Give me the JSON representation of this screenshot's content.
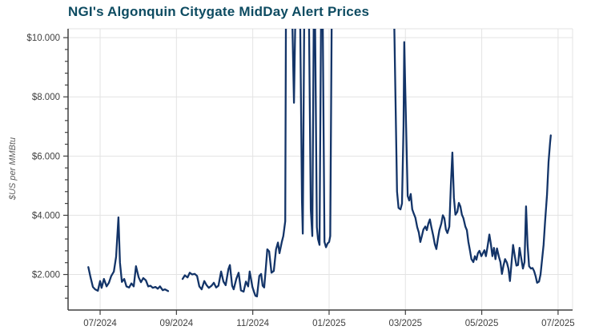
{
  "page": {
    "background": "#ffffff"
  },
  "chart": {
    "title": "NGI's Algonquin Citygate MidDay Alert Prices",
    "title_color": "#0d4b61",
    "ylabel": "$US per MMBtu",
    "line_color": "#133468",
    "grid_color": "#e3e3e3",
    "axis_color": "#3f3f3f",
    "tick_label_color": "#3f3f3f"
  },
  "chart_data": {
    "type": "line",
    "title": "NGI's Algonquin Citygate MidDay Alert Prices",
    "ylabel": "$US per MMBtu",
    "xlabel": "",
    "series_name": "Algonquin Citygate MidDay alert price",
    "x_unit": "months since 2024-07 (0 = 07/2024)",
    "xlim": [
      -0.84,
      12.38
    ],
    "ylim": [
      0.8,
      10.3
    ],
    "clipped_above": 10.3,
    "grid": true,
    "x_ticks": {
      "values": [
        0,
        2,
        4,
        6,
        8,
        10,
        12
      ],
      "labels": [
        "07/2024",
        "09/2024",
        "11/2024",
        "01/2025",
        "03/2025",
        "05/2025",
        "07/2025"
      ]
    },
    "y_ticks": {
      "values": [
        2,
        4,
        6,
        8,
        10
      ],
      "labels": [
        "$2.000",
        "$4.000",
        "$6.000",
        "$8.000",
        "$10.000"
      ],
      "minor_step": 0.4
    },
    "gap_note": "null entries are breaks in the reported price series; values of 11 are off-scale spikes clipped at the top of the plot",
    "points": [
      [
        -0.31,
        2.25
      ],
      [
        -0.25,
        1.9
      ],
      [
        -0.19,
        1.58
      ],
      [
        -0.13,
        1.5
      ],
      [
        -0.06,
        1.45
      ],
      [
        0,
        1.78
      ],
      [
        0.04,
        1.55
      ],
      [
        0.1,
        1.85
      ],
      [
        0.17,
        1.6
      ],
      [
        0.23,
        1.72
      ],
      [
        0.29,
        1.95
      ],
      [
        0.36,
        2.1
      ],
      [
        0.42,
        2.6
      ],
      [
        0.48,
        3.93
      ],
      [
        0.52,
        2.4
      ],
      [
        0.57,
        1.75
      ],
      [
        0.63,
        1.85
      ],
      [
        0.69,
        1.6
      ],
      [
        0.76,
        1.56
      ],
      [
        0.82,
        1.7
      ],
      [
        0.88,
        1.6
      ],
      [
        0.94,
        2.28
      ],
      [
        1.01,
        1.9
      ],
      [
        1.07,
        1.74
      ],
      [
        1.13,
        1.88
      ],
      [
        1.2,
        1.8
      ],
      [
        1.26,
        1.6
      ],
      [
        1.32,
        1.62
      ],
      [
        1.38,
        1.55
      ],
      [
        1.45,
        1.58
      ],
      [
        1.51,
        1.52
      ],
      [
        1.57,
        1.6
      ],
      [
        1.64,
        1.47
      ],
      [
        1.7,
        1.5
      ],
      [
        1.78,
        1.44
      ],
      null,
      [
        2.16,
        1.85
      ],
      [
        2.22,
        1.97
      ],
      [
        2.29,
        1.9
      ],
      [
        2.35,
        2.06
      ],
      [
        2.41,
        2.0
      ],
      [
        2.48,
        2.02
      ],
      [
        2.54,
        1.95
      ],
      [
        2.6,
        1.6
      ],
      [
        2.66,
        1.5
      ],
      [
        2.73,
        1.78
      ],
      [
        2.79,
        1.64
      ],
      [
        2.85,
        1.55
      ],
      [
        2.92,
        1.62
      ],
      [
        2.98,
        1.72
      ],
      [
        3.04,
        1.56
      ],
      [
        3.1,
        1.62
      ],
      [
        3.17,
        2.1
      ],
      [
        3.23,
        1.76
      ],
      [
        3.29,
        1.64
      ],
      [
        3.36,
        2.18
      ],
      [
        3.4,
        2.32
      ],
      [
        3.46,
        1.62
      ],
      [
        3.5,
        1.5
      ],
      [
        3.57,
        1.86
      ],
      [
        3.63,
        2.06
      ],
      [
        3.69,
        1.46
      ],
      [
        3.76,
        1.42
      ],
      [
        3.82,
        1.76
      ],
      [
        3.88,
        1.6
      ],
      [
        3.92,
        2.1
      ],
      [
        3.99,
        1.58
      ],
      [
        4.03,
        1.42
      ],
      [
        4.07,
        1.28
      ],
      [
        4.11,
        1.26
      ],
      [
        4.17,
        1.95
      ],
      [
        4.22,
        2.02
      ],
      [
        4.26,
        1.62
      ],
      [
        4.3,
        1.56
      ],
      [
        4.34,
        2.2
      ],
      [
        4.38,
        2.85
      ],
      [
        4.43,
        2.78
      ],
      [
        4.49,
        2.06
      ],
      [
        4.55,
        2.12
      ],
      [
        4.61,
        2.85
      ],
      [
        4.66,
        3.08
      ],
      [
        4.7,
        2.72
      ],
      [
        4.76,
        3.1
      ],
      [
        4.8,
        3.3
      ],
      [
        4.85,
        3.8
      ],
      [
        4.87,
        11
      ],
      [
        5.03,
        11
      ],
      [
        5.08,
        7.8
      ],
      [
        5.12,
        11
      ],
      [
        5.24,
        11
      ],
      [
        5.29,
        4.5
      ],
      [
        5.31,
        3.38
      ],
      [
        5.35,
        11
      ],
      [
        5.47,
        11
      ],
      [
        5.52,
        4.2
      ],
      [
        5.56,
        3.3
      ],
      [
        5.6,
        11
      ],
      [
        5.63,
        11
      ],
      [
        5.68,
        3.6
      ],
      [
        5.71,
        3.2
      ],
      [
        5.75,
        3.0
      ],
      [
        5.79,
        11
      ],
      [
        5.83,
        11
      ],
      [
        5.88,
        3.1
      ],
      [
        5.92,
        2.92
      ],
      [
        5.96,
        3.05
      ],
      [
        6.0,
        3.1
      ],
      [
        6.03,
        3.3
      ],
      [
        6.07,
        11
      ],
      [
        6.19,
        11
      ],
      [
        7.7,
        11
      ],
      [
        7.78,
        4.8
      ],
      [
        7.82,
        4.25
      ],
      [
        7.87,
        4.2
      ],
      [
        7.91,
        4.4
      ],
      [
        7.95,
        7.0
      ],
      [
        7.97,
        9.85
      ],
      [
        8.01,
        7.5
      ],
      [
        8.06,
        4.65
      ],
      [
        8.1,
        4.5
      ],
      [
        8.14,
        4.72
      ],
      [
        8.18,
        4.2
      ],
      [
        8.22,
        4.05
      ],
      [
        8.26,
        3.92
      ],
      [
        8.31,
        3.6
      ],
      [
        8.35,
        3.42
      ],
      [
        8.39,
        3.1
      ],
      [
        8.43,
        3.3
      ],
      [
        8.47,
        3.52
      ],
      [
        8.52,
        3.62
      ],
      [
        8.56,
        3.5
      ],
      [
        8.6,
        3.72
      ],
      [
        8.64,
        3.86
      ],
      [
        8.68,
        3.6
      ],
      [
        8.73,
        3.3
      ],
      [
        8.77,
        3.02
      ],
      [
        8.81,
        2.86
      ],
      [
        8.85,
        3.2
      ],
      [
        8.89,
        3.5
      ],
      [
        8.94,
        3.72
      ],
      [
        8.98,
        4.0
      ],
      [
        9.02,
        3.9
      ],
      [
        9.06,
        3.52
      ],
      [
        9.1,
        3.4
      ],
      [
        9.15,
        3.62
      ],
      [
        9.19,
        5.0
      ],
      [
        9.23,
        6.12
      ],
      [
        9.27,
        4.6
      ],
      [
        9.31,
        4.02
      ],
      [
        9.36,
        4.12
      ],
      [
        9.4,
        4.42
      ],
      [
        9.44,
        4.3
      ],
      [
        9.48,
        4.02
      ],
      [
        9.52,
        3.9
      ],
      [
        9.57,
        3.62
      ],
      [
        9.61,
        3.5
      ],
      [
        9.65,
        3.1
      ],
      [
        9.69,
        2.82
      ],
      [
        9.73,
        2.52
      ],
      [
        9.78,
        2.42
      ],
      [
        9.82,
        2.62
      ],
      [
        9.86,
        2.5
      ],
      [
        9.9,
        2.72
      ],
      [
        9.94,
        2.8
      ],
      [
        9.99,
        2.62
      ],
      [
        10.03,
        2.72
      ],
      [
        10.07,
        2.82
      ],
      [
        10.11,
        2.62
      ],
      [
        10.15,
        2.92
      ],
      [
        10.2,
        3.35
      ],
      [
        10.24,
        3.02
      ],
      [
        10.28,
        2.62
      ],
      [
        10.32,
        2.9
      ],
      [
        10.36,
        2.52
      ],
      [
        10.4,
        2.88
      ],
      [
        10.45,
        2.6
      ],
      [
        10.49,
        2.42
      ],
      [
        10.53,
        2.02
      ],
      [
        10.57,
        2.3
      ],
      [
        10.61,
        2.52
      ],
      [
        10.66,
        2.4
      ],
      [
        10.7,
        2.2
      ],
      [
        10.74,
        1.78
      ],
      [
        10.78,
        2.4
      ],
      [
        10.82,
        3.0
      ],
      [
        10.87,
        2.6
      ],
      [
        10.91,
        2.3
      ],
      [
        10.95,
        2.32
      ],
      [
        10.99,
        2.9
      ],
      [
        11.03,
        2.58
      ],
      [
        11.08,
        2.2
      ],
      [
        11.12,
        2.42
      ],
      [
        11.16,
        4.3
      ],
      [
        11.2,
        3.0
      ],
      [
        11.24,
        2.28
      ],
      [
        11.29,
        2.2
      ],
      [
        11.33,
        2.22
      ],
      [
        11.37,
        2.12
      ],
      [
        11.41,
        1.95
      ],
      [
        11.45,
        1.72
      ],
      [
        11.5,
        1.76
      ],
      [
        11.54,
        2.0
      ],
      [
        11.58,
        2.5
      ],
      [
        11.62,
        3.0
      ],
      [
        11.66,
        3.8
      ],
      [
        11.71,
        4.7
      ],
      [
        11.75,
        5.8
      ],
      [
        11.79,
        6.45
      ],
      [
        11.81,
        6.7
      ]
    ]
  }
}
